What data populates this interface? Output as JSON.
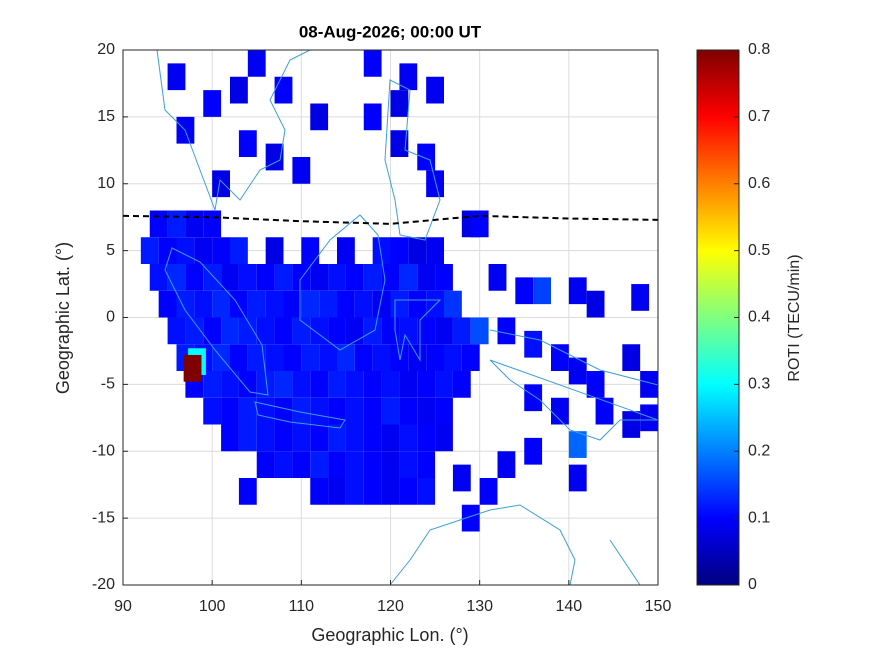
{
  "chart_data": {
    "type": "heatmap",
    "title": "08-Aug-2026; 00:00 UT",
    "xlabel": "Geographic Lon. (°)",
    "ylabel": "Geographic Lat. (°)",
    "xlim": [
      90,
      150
    ],
    "ylim": [
      -20,
      20
    ],
    "xticks": [
      90,
      100,
      110,
      120,
      130,
      140,
      150
    ],
    "yticks": [
      -20,
      -15,
      -10,
      -5,
      0,
      5,
      10,
      15,
      20
    ],
    "grid": true,
    "colormap": "jet",
    "cell_size": [
      2,
      2
    ],
    "colorbar": {
      "label": "ROTI (TECU/min)",
      "lim": [
        0,
        0.8
      ],
      "ticks": [
        0,
        0.1,
        0.2,
        0.3,
        0.4,
        0.5,
        0.6,
        0.7,
        0.8
      ]
    },
    "x": [
      94,
      96,
      98,
      100,
      129,
      93,
      95,
      97,
      99,
      101,
      103,
      107,
      111,
      115,
      119,
      121,
      123,
      125,
      94,
      96,
      98,
      100,
      102,
      104,
      106,
      108,
      110,
      112,
      114,
      116,
      118,
      120,
      122,
      124,
      126,
      95,
      97,
      99,
      101,
      103,
      105,
      107,
      109,
      111,
      113,
      115,
      117,
      119,
      121,
      123,
      125,
      127,
      96,
      98,
      100,
      102,
      104,
      106,
      108,
      110,
      112,
      114,
      116,
      118,
      120,
      122,
      124,
      126,
      128,
      130,
      97,
      99,
      101,
      103,
      105,
      107,
      109,
      111,
      113,
      115,
      117,
      119,
      121,
      123,
      125,
      127,
      129,
      98,
      100,
      102,
      104,
      106,
      108,
      110,
      112,
      114,
      116,
      118,
      120,
      122,
      124,
      126,
      128,
      100,
      102,
      104,
      106,
      108,
      110,
      112,
      114,
      116,
      118,
      120,
      122,
      124,
      126,
      102,
      104,
      106,
      108,
      110,
      112,
      114,
      116,
      118,
      120,
      122,
      124,
      126,
      106,
      108,
      110,
      112,
      114,
      116,
      118,
      120,
      122,
      124,
      112,
      114,
      116,
      118,
      120,
      122,
      124,
      96,
      100,
      103,
      105,
      108,
      112,
      97,
      104,
      107,
      110,
      118,
      122,
      121,
      118,
      125,
      121,
      124,
      125,
      101,
      130,
      132,
      135,
      137,
      141,
      143,
      148,
      133,
      136,
      139,
      141,
      143,
      147,
      149,
      136,
      139,
      144,
      147,
      149,
      141,
      136,
      133,
      131,
      128,
      129,
      104,
      141,
      98.3,
      97.8
    ],
    "y": [
      7,
      7,
      7,
      7,
      7,
      5,
      5,
      5,
      5,
      5,
      5,
      5,
      5,
      5,
      5,
      5,
      5,
      5,
      3,
      3,
      3,
      3,
      3,
      3,
      3,
      3,
      3,
      3,
      3,
      3,
      3,
      3,
      3,
      3,
      3,
      1,
      1,
      1,
      1,
      1,
      1,
      1,
      1,
      1,
      1,
      1,
      1,
      1,
      1,
      1,
      1,
      1,
      -1,
      -1,
      -1,
      -1,
      -1,
      -1,
      -1,
      -1,
      -1,
      -1,
      -1,
      -1,
      -1,
      -1,
      -1,
      -1,
      -1,
      -1,
      -3,
      -3,
      -3,
      -3,
      -3,
      -3,
      -3,
      -3,
      -3,
      -3,
      -3,
      -3,
      -3,
      -3,
      -3,
      -3,
      -3,
      -5,
      -5,
      -5,
      -5,
      -5,
      -5,
      -5,
      -5,
      -5,
      -5,
      -5,
      -5,
      -5,
      -5,
      -5,
      -5,
      -7,
      -7,
      -7,
      -7,
      -7,
      -7,
      -7,
      -7,
      -7,
      -7,
      -7,
      -7,
      -7,
      -7,
      -9,
      -9,
      -9,
      -9,
      -9,
      -9,
      -9,
      -9,
      -9,
      -9,
      -9,
      -9,
      -9,
      -11,
      -11,
      -11,
      -11,
      -11,
      -11,
      -11,
      -11,
      -11,
      -11,
      -13,
      -13,
      -13,
      -13,
      -13,
      -13,
      -13,
      18,
      16,
      17,
      19,
      17,
      15,
      14,
      13,
      12,
      11,
      19,
      18,
      16,
      15,
      17,
      13,
      12,
      10,
      10,
      7,
      3,
      2,
      2,
      2,
      1,
      1.5,
      -1,
      -2,
      -3,
      -4,
      -5,
      -3,
      -5,
      -6,
      -7,
      -7,
      -8,
      -7.5,
      -9.5,
      -10,
      -11,
      -13,
      -12,
      -15,
      -13,
      -12,
      -3.3,
      -3.8
    ],
    "values": [
      0.1,
      0.12,
      0.09,
      0.1,
      0.08,
      0.12,
      0.1,
      0.11,
      0.09,
      0.1,
      0.12,
      0.08,
      0.1,
      0.09,
      0.11,
      0.1,
      0.08,
      0.09,
      0.11,
      0.13,
      0.1,
      0.12,
      0.09,
      0.11,
      0.1,
      0.12,
      0.1,
      0.09,
      0.11,
      0.1,
      0.12,
      0.1,
      0.13,
      0.09,
      0.1,
      0.1,
      0.12,
      0.11,
      0.13,
      0.1,
      0.12,
      0.11,
      0.1,
      0.13,
      0.12,
      0.1,
      0.11,
      0.09,
      0.12,
      0.1,
      0.11,
      0.14,
      0.11,
      0.12,
      0.1,
      0.13,
      0.12,
      0.11,
      0.1,
      0.12,
      0.11,
      0.1,
      0.09,
      0.12,
      0.1,
      0.11,
      0.1,
      0.09,
      0.12,
      0.16,
      0.12,
      0.11,
      0.13,
      0.1,
      0.12,
      0.11,
      0.1,
      0.12,
      0.11,
      0.13,
      0.1,
      0.11,
      0.1,
      0.09,
      0.1,
      0.11,
      0.1,
      0.1,
      0.12,
      0.11,
      0.1,
      0.12,
      0.13,
      0.11,
      0.1,
      0.12,
      0.11,
      0.1,
      0.11,
      0.09,
      0.1,
      0.11,
      0.1,
      0.11,
      0.1,
      0.12,
      0.11,
      0.1,
      0.12,
      0.11,
      0.1,
      0.11,
      0.1,
      0.12,
      0.1,
      0.09,
      0.1,
      0.1,
      0.12,
      0.11,
      0.1,
      0.11,
      0.1,
      0.12,
      0.11,
      0.1,
      0.09,
      0.11,
      0.1,
      0.09,
      0.1,
      0.11,
      0.1,
      0.12,
      0.1,
      0.11,
      0.1,
      0.09,
      0.11,
      0.1,
      0.1,
      0.09,
      0.11,
      0.1,
      0.09,
      0.1,
      0.11,
      0.09,
      0.1,
      0.08,
      0.09,
      0.1,
      0.08,
      0.09,
      0.1,
      0.08,
      0.09,
      0.1,
      0.09,
      0.08,
      0.1,
      0.09,
      0.08,
      0.1,
      0.09,
      0.08,
      0.1,
      0.09,
      0.1,
      0.15,
      0.09,
      0.08,
      0.09,
      0.1,
      0.11,
      0.1,
      0.09,
      0.1,
      0.08,
      0.09,
      0.1,
      0.09,
      0.1,
      0.08,
      0.09,
      0.18,
      0.1,
      0.09,
      0.1,
      0.09,
      0.1,
      0.1,
      0.09,
      0.3,
      0.8
    ],
    "lines": [
      {
        "style": "dashed",
        "color": "#000000",
        "x": [
          90,
          100,
          110,
          120,
          125,
          130,
          135,
          140,
          150
        ],
        "y": [
          7.6,
          7.5,
          7.2,
          7.0,
          7.3,
          7.6,
          7.5,
          7.4,
          7.3
        ]
      }
    ]
  }
}
